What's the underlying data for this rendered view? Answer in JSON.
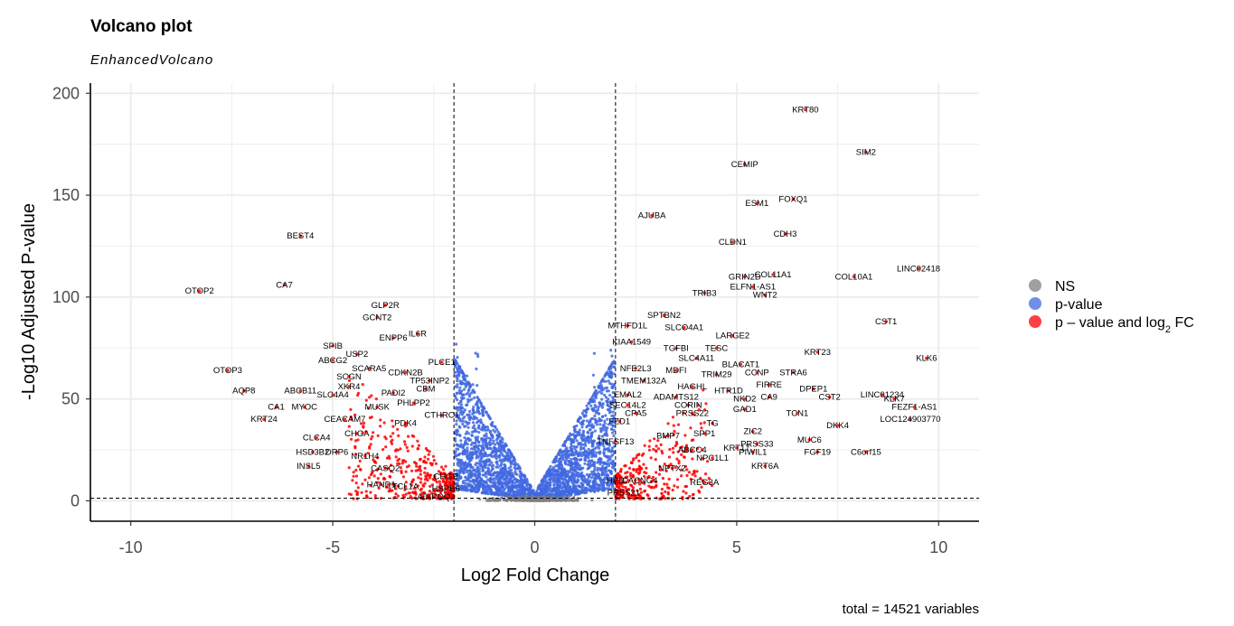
{
  "chart_data": {
    "type": "scatter",
    "title": "Volcano plot",
    "subtitle": "EnhancedVolcano",
    "xlabel": "Log2 Fold Change",
    "ylabel": "-Log10 Adjusted P-value",
    "caption": "total = 14521 variables",
    "xlim": [
      -11,
      11
    ],
    "ylim": [
      -10,
      205
    ],
    "xticks": [
      -10,
      -5,
      0,
      5,
      10
    ],
    "xtick_labels": [
      "-10",
      "-5",
      "0",
      "5",
      "10"
    ],
    "yticks": [
      0,
      50,
      100,
      150,
      200
    ],
    "ytick_labels": [
      "0",
      "50",
      "100",
      "150",
      "200"
    ],
    "grid": true,
    "fc_cutoff": 2,
    "p_cutoff_log10": 1.3,
    "legend": {
      "position": "right",
      "items": [
        {
          "key": "ns",
          "label": "NS",
          "color": "#7f7f7f"
        },
        {
          "key": "p",
          "label": "p-value",
          "color": "#4169e1"
        },
        {
          "key": "pfc",
          "label": "p – value and log",
          "sub": "2",
          "label_tail": " FC",
          "color": "#ff0000"
        }
      ]
    },
    "series": [
      {
        "name": "NS",
        "color": "#7f7f7f",
        "region": "center band |log2FC| < 1.2, -log10 p < 3"
      },
      {
        "name": "p-value",
        "color": "#4169e1",
        "region": "|log2FC| < 2"
      },
      {
        "name": "p – value and log2 FC",
        "color": "#ff0000",
        "region": "|log2FC| >= 2"
      }
    ],
    "labeled_points": [
      {
        "label": "KRT80",
        "x": 6.7,
        "y": 192
      },
      {
        "label": "SIM2",
        "x": 8.2,
        "y": 171
      },
      {
        "label": "CEMIP",
        "x": 5.2,
        "y": 165
      },
      {
        "label": "FOXQ1",
        "x": 6.4,
        "y": 148
      },
      {
        "label": "ESM1",
        "x": 5.5,
        "y": 146
      },
      {
        "label": "AJUBA",
        "x": 2.9,
        "y": 140
      },
      {
        "label": "CDH3",
        "x": 6.2,
        "y": 131
      },
      {
        "label": "CLDN1",
        "x": 4.9,
        "y": 127
      },
      {
        "label": "BEST4",
        "x": -5.8,
        "y": 130
      },
      {
        "label": "LINC02418",
        "x": 9.5,
        "y": 114
      },
      {
        "label": "COL11A1",
        "x": 5.9,
        "y": 111
      },
      {
        "label": "COL10A1",
        "x": 7.9,
        "y": 110
      },
      {
        "label": "GRIN2D",
        "x": 5.2,
        "y": 110
      },
      {
        "label": "ELFN1-AS1",
        "x": 5.4,
        "y": 105
      },
      {
        "label": "CA7",
        "x": -6.2,
        "y": 106
      },
      {
        "label": "OTOP2",
        "x": -8.3,
        "y": 103
      },
      {
        "label": "TRIB3",
        "x": 4.2,
        "y": 102
      },
      {
        "label": "WNT2",
        "x": 5.7,
        "y": 101
      },
      {
        "label": "GLP2R",
        "x": -3.7,
        "y": 96
      },
      {
        "label": "GCNT2",
        "x": -3.9,
        "y": 90
      },
      {
        "label": "SPTBN2",
        "x": 3.2,
        "y": 91
      },
      {
        "label": "CST1",
        "x": 8.7,
        "y": 88
      },
      {
        "label": "MTHFD1L",
        "x": 2.3,
        "y": 86
      },
      {
        "label": "SLCO4A1",
        "x": 3.7,
        "y": 85
      },
      {
        "label": "IL6R",
        "x": -2.9,
        "y": 82
      },
      {
        "label": "ENPP6",
        "x": -3.5,
        "y": 80
      },
      {
        "label": "LARGE2",
        "x": 4.9,
        "y": 81
      },
      {
        "label": "KIAA1549",
        "x": 2.4,
        "y": 78
      },
      {
        "label": "TGFBI",
        "x": 3.5,
        "y": 75
      },
      {
        "label": "TESC",
        "x": 4.5,
        "y": 75
      },
      {
        "label": "SPIB",
        "x": -5.0,
        "y": 76
      },
      {
        "label": "USP2",
        "x": -4.4,
        "y": 72
      },
      {
        "label": "KRT23",
        "x": 7.0,
        "y": 73
      },
      {
        "label": "ABCG2",
        "x": -5.0,
        "y": 69
      },
      {
        "label": "SLC4A11",
        "x": 4.0,
        "y": 70
      },
      {
        "label": "KLK6",
        "x": 9.7,
        "y": 70
      },
      {
        "label": "PLCE1",
        "x": -2.3,
        "y": 68
      },
      {
        "label": "BLACAT1",
        "x": 5.1,
        "y": 67
      },
      {
        "label": "SCARA5",
        "x": -4.1,
        "y": 65
      },
      {
        "label": "NFE2L3",
        "x": 2.5,
        "y": 65
      },
      {
        "label": "MDFI",
        "x": 3.5,
        "y": 64
      },
      {
        "label": "OTOP3",
        "x": -7.6,
        "y": 64
      },
      {
        "label": "CDKN2B",
        "x": -3.2,
        "y": 63
      },
      {
        "label": "TRIM29",
        "x": 4.5,
        "y": 62
      },
      {
        "label": "CCNP",
        "x": 5.5,
        "y": 63
      },
      {
        "label": "STRA6",
        "x": 6.4,
        "y": 63
      },
      {
        "label": "SCGN",
        "x": -4.6,
        "y": 61
      },
      {
        "label": "TMEM132A",
        "x": 2.7,
        "y": 59
      },
      {
        "label": "TP53INP2",
        "x": -2.6,
        "y": 59
      },
      {
        "label": "FIRRE",
        "x": 5.8,
        "y": 57
      },
      {
        "label": "XKR4",
        "x": -4.6,
        "y": 56
      },
      {
        "label": "HAGHL",
        "x": 3.9,
        "y": 56
      },
      {
        "label": "HTR1D",
        "x": 4.8,
        "y": 54
      },
      {
        "label": "DPEP1",
        "x": 6.9,
        "y": 55
      },
      {
        "label": "AQP8",
        "x": -7.2,
        "y": 54
      },
      {
        "label": "ABCB11",
        "x": -5.8,
        "y": 54
      },
      {
        "label": "CBM",
        "x": -2.7,
        "y": 55
      },
      {
        "label": "PADI2",
        "x": -3.5,
        "y": 53
      },
      {
        "label": "EMAL2",
        "x": 2.3,
        "y": 52
      },
      {
        "label": "SLC4A4",
        "x": -5.0,
        "y": 52
      },
      {
        "label": "ADAMTS12",
        "x": 3.5,
        "y": 51
      },
      {
        "label": "NKD2",
        "x": 5.2,
        "y": 50
      },
      {
        "label": "CA9",
        "x": 5.8,
        "y": 51
      },
      {
        "label": "CST2",
        "x": 7.3,
        "y": 51
      },
      {
        "label": "LINC01234",
        "x": 8.6,
        "y": 52
      },
      {
        "label": "KLK7",
        "x": 8.9,
        "y": 50
      },
      {
        "label": "PHLPP2",
        "x": -3.0,
        "y": 48
      },
      {
        "label": "SEC14L2",
        "x": 2.3,
        "y": 47
      },
      {
        "label": "CORIN",
        "x": 3.8,
        "y": 47
      },
      {
        "label": "MUSK",
        "x": -3.9,
        "y": 46
      },
      {
        "label": "FEZF1-AS1",
        "x": 9.4,
        "y": 46
      },
      {
        "label": "CA1",
        "x": -6.4,
        "y": 46
      },
      {
        "label": "MYOC",
        "x": -5.7,
        "y": 46
      },
      {
        "label": "GAD1",
        "x": 5.2,
        "y": 45
      },
      {
        "label": "TCN1",
        "x": 6.5,
        "y": 43
      },
      {
        "label": "PRSS22",
        "x": 3.9,
        "y": 43
      },
      {
        "label": "CPA5",
        "x": 2.5,
        "y": 43
      },
      {
        "label": "CTHRC1",
        "x": -2.3,
        "y": 42
      },
      {
        "label": "KRT24",
        "x": -6.7,
        "y": 40
      },
      {
        "label": "CEACAM7",
        "x": -4.7,
        "y": 40
      },
      {
        "label": "LOC124903770",
        "x": 9.3,
        "y": 40
      },
      {
        "label": "DKK4",
        "x": 7.5,
        "y": 37
      },
      {
        "label": "PDK4",
        "x": -3.2,
        "y": 38
      },
      {
        "label": "FZD1",
        "x": 2.1,
        "y": 39
      },
      {
        "label": "TG",
        "x": 4.4,
        "y": 38
      },
      {
        "label": "ZIC2",
        "x": 5.4,
        "y": 34
      },
      {
        "label": "CHGA",
        "x": -4.4,
        "y": 33
      },
      {
        "label": "SPP1",
        "x": 4.2,
        "y": 33
      },
      {
        "label": "BMP7",
        "x": 3.3,
        "y": 32
      },
      {
        "label": "CLCA4",
        "x": -5.4,
        "y": 31
      },
      {
        "label": "MUC6",
        "x": 6.8,
        "y": 30
      },
      {
        "label": "TNFSF13",
        "x": 2.0,
        "y": 29
      },
      {
        "label": "PRSS33",
        "x": 5.5,
        "y": 28
      },
      {
        "label": "KRT17",
        "x": 5.0,
        "y": 26
      },
      {
        "label": "PIWIL1",
        "x": 5.4,
        "y": 24
      },
      {
        "label": "FGF19",
        "x": 7.0,
        "y": 24
      },
      {
        "label": "C6orf15",
        "x": 8.2,
        "y": 24
      },
      {
        "label": "ABCC4",
        "x": 3.9,
        "y": 25
      },
      {
        "label": "NPC1L1",
        "x": 4.4,
        "y": 21
      },
      {
        "label": "HSD3B2",
        "x": -5.5,
        "y": 24
      },
      {
        "label": "DRP6",
        "x": -4.9,
        "y": 24
      },
      {
        "label": "NR1H4",
        "x": -4.2,
        "y": 22
      },
      {
        "label": "INSL5",
        "x": -5.6,
        "y": 17
      },
      {
        "label": "CASQ2",
        "x": -3.7,
        "y": 16
      },
      {
        "label": "NPTX2",
        "x": 3.4,
        "y": 16
      },
      {
        "label": "KRT6A",
        "x": 5.7,
        "y": 17
      },
      {
        "label": "CACNG4",
        "x": 2.6,
        "y": 10
      },
      {
        "label": "REG3A",
        "x": 4.2,
        "y": 9
      },
      {
        "label": "HAND1",
        "x": -3.8,
        "y": 8
      },
      {
        "label": "TCL1A",
        "x": -3.2,
        "y": 7
      },
      {
        "label": "HSPB6",
        "x": -2.2,
        "y": 6
      },
      {
        "label": "ADIPOQ",
        "x": -2.5,
        "y": 2
      },
      {
        "label": "PRSS21",
        "x": 2.2,
        "y": 4
      },
      {
        "label": "HPD",
        "x": 2.0,
        "y": 10
      },
      {
        "label": "CHGB",
        "x": -2.2,
        "y": 12
      }
    ]
  }
}
